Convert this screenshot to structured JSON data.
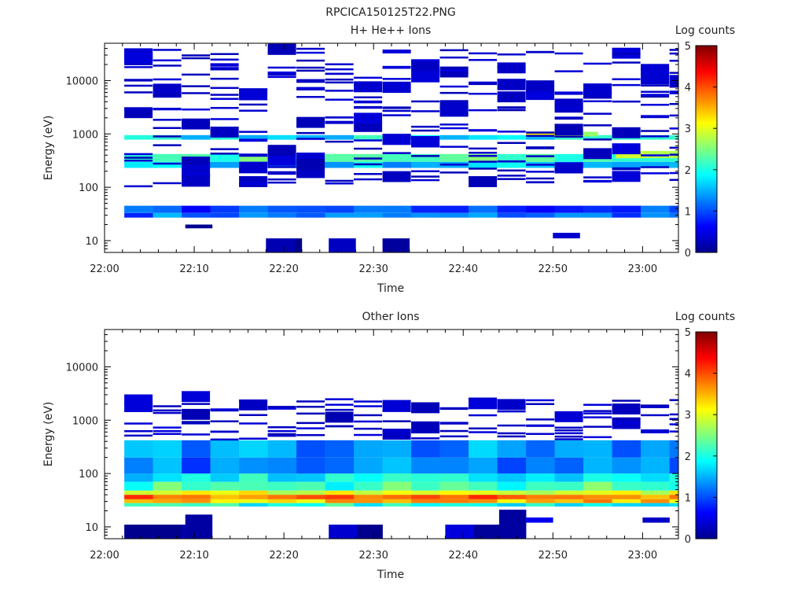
{
  "figure_title": "RPCICA150125T22.PNG",
  "colormap": [
    "#00008f",
    "#0000ff",
    "#007fff",
    "#00ffff",
    "#7fff7f",
    "#ffff00",
    "#ff7f00",
    "#ff0000",
    "#7f0000"
  ],
  "chart_data": [
    {
      "type": "heatmap",
      "title": "H+ He++ Ions",
      "xlabel": "Time",
      "ylabel": "Energy (eV)",
      "x_ticks": [
        "22:00",
        "22:10",
        "22:20",
        "22:30",
        "22:40",
        "22:50",
        "23:00"
      ],
      "x_range_minutes": [
        0,
        64
      ],
      "y_scale": "log",
      "y_ticks": [
        "10",
        "100",
        "1000",
        "10000"
      ],
      "ylim": [
        6,
        50000
      ],
      "colorbar": {
        "label": "Log counts",
        "range": [
          0,
          5
        ],
        "ticks": [
          "0",
          "1",
          "2",
          "3",
          "4",
          "5"
        ]
      },
      "grid": false,
      "cells_description": "Continuous band at ~30-45 eV (values ~1); band at ~250-450 eV (values ~2-2.5); band at ~800-1000 eV (values ~2-3); sparse low-count (~0.2) horizontal lines across 100-40000 eV; isolated blocks near 10 eV.",
      "cells": [
        {
          "t": [
            2.2,
            64
          ],
          "e": [
            27,
            33
          ],
          "v": 1.2
        },
        {
          "t": [
            2.2,
            64
          ],
          "e": [
            33,
            45
          ],
          "v": 0.9
        },
        {
          "t": [
            2.2,
            64
          ],
          "e": [
            230,
            300
          ],
          "v": 1.6
        },
        {
          "t": [
            2.2,
            64
          ],
          "e": [
            300,
            420
          ],
          "v": 2.2
        },
        {
          "t": [
            2.2,
            64
          ],
          "e": [
            780,
            950
          ],
          "v": 1.8
        },
        {
          "t": [
            47,
            55
          ],
          "e": [
            900,
            1100
          ],
          "v": 3.0
        },
        {
          "t": [
            57,
            64
          ],
          "e": [
            350,
            480
          ],
          "v": 3.1
        },
        {
          "t": [
            18,
            22
          ],
          "e": [
            6,
            11
          ],
          "v": 0.1
        },
        {
          "t": [
            25,
            28
          ],
          "e": [
            6,
            11
          ],
          "v": 0.1
        },
        {
          "t": [
            31,
            34
          ],
          "e": [
            6,
            11
          ],
          "v": 0.1
        },
        {
          "t": [
            50,
            53
          ],
          "e": [
            11,
            14
          ],
          "v": 0.2
        },
        {
          "t": [
            9,
            12
          ],
          "e": [
            17,
            20
          ],
          "v": 0.2
        }
      ],
      "sparse_lines": {
        "t": [
          2.2,
          64
        ],
        "e": [
          100,
          40000
        ],
        "v": 0.2
      }
    },
    {
      "type": "heatmap",
      "title": "Other Ions",
      "xlabel": "Time",
      "ylabel": "Energy (eV)",
      "x_ticks": [
        "22:00",
        "22:10",
        "22:20",
        "22:30",
        "22:40",
        "22:50",
        "23:00"
      ],
      "x_range_minutes": [
        0,
        64
      ],
      "y_scale": "log",
      "y_ticks": [
        "10",
        "100",
        "1000",
        "10000"
      ],
      "ylim": [
        6,
        50000
      ],
      "colorbar": {
        "label": "Log counts",
        "range": [
          0,
          5
        ],
        "ticks": [
          "0",
          "1",
          "2",
          "3",
          "4",
          "5"
        ]
      },
      "grid": false,
      "cells_description": "Strong band at ~30-45 eV (values ~3.5-4); broad 50-400 eV region (values ~1-2); sparse low-count lines 400-2500 eV; low blocks near 10 eV.",
      "cells": [
        {
          "t": [
            2.2,
            64
          ],
          "e": [
            24,
            28
          ],
          "v": 2.0
        },
        {
          "t": [
            2.2,
            64
          ],
          "e": [
            28,
            33
          ],
          "v": 3.4
        },
        {
          "t": [
            2.2,
            64
          ],
          "e": [
            33,
            40
          ],
          "v": 3.8
        },
        {
          "t": [
            2.2,
            64
          ],
          "e": [
            40,
            48
          ],
          "v": 3.0
        },
        {
          "t": [
            2.2,
            64
          ],
          "e": [
            48,
            70
          ],
          "v": 2.2
        },
        {
          "t": [
            2.2,
            64
          ],
          "e": [
            70,
            100
          ],
          "v": 1.8
        },
        {
          "t": [
            2.2,
            64
          ],
          "e": [
            100,
            200
          ],
          "v": 1.2
        },
        {
          "t": [
            2.2,
            64
          ],
          "e": [
            200,
            420
          ],
          "v": 1.4
        },
        {
          "t": [
            2.2,
            9
          ],
          "e": [
            6,
            11
          ],
          "v": 0.1
        },
        {
          "t": [
            9,
            12
          ],
          "e": [
            6,
            17
          ],
          "v": 0.1
        },
        {
          "t": [
            25,
            31
          ],
          "e": [
            6,
            11
          ],
          "v": 0.1
        },
        {
          "t": [
            38,
            44
          ],
          "e": [
            6,
            11
          ],
          "v": 0.1
        },
        {
          "t": [
            44,
            47
          ],
          "e": [
            6,
            21
          ],
          "v": 0.1
        },
        {
          "t": [
            47,
            50
          ],
          "e": [
            12,
            15
          ],
          "v": 0.2
        },
        {
          "t": [
            60,
            63
          ],
          "e": [
            12,
            15
          ],
          "v": 0.2
        }
      ],
      "sparse_lines": {
        "t": [
          2.2,
          64
        ],
        "e": [
          420,
          2500
        ],
        "v": 0.2
      }
    }
  ]
}
